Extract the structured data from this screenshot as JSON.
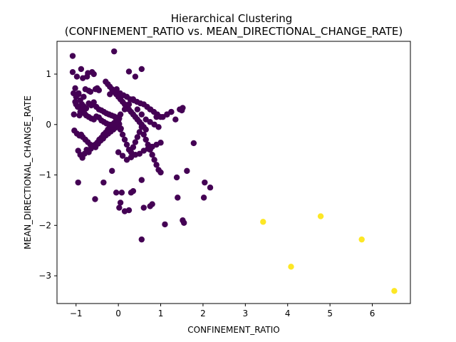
{
  "chart_data": {
    "type": "scatter",
    "title_line1": "Hierarchical Clustering",
    "title_line2": "(CONFINEMENT_RATIO vs. MEAN_DIRECTIONAL_CHANGE_RATE)",
    "xlabel": "CONFINEMENT_RATIO",
    "ylabel": "MEAN_DIRECTIONAL_CHANGE_RATE",
    "xlim": [
      -1.45,
      6.9
    ],
    "ylim": [
      -3.55,
      1.65
    ],
    "xticks": [
      -1,
      0,
      1,
      2,
      3,
      4,
      5,
      6
    ],
    "xtick_labels": [
      "−1",
      "0",
      "1",
      "2",
      "3",
      "4",
      "5",
      "6"
    ],
    "yticks": [
      1,
      0,
      -1,
      -2,
      -3
    ],
    "ytick_labels": [
      "1",
      "0",
      "−1",
      "−2",
      "−3"
    ],
    "grid": false,
    "legend": "none",
    "colors": {
      "cluster_0": "#440154",
      "cluster_1": "#fde725"
    },
    "series": [
      {
        "cluster": 0,
        "color": "#440154",
        "x": [
          -1.08,
          -1.08,
          -1.02,
          -1.02,
          -0.98,
          -0.94,
          -0.92,
          -0.88,
          -0.84,
          -0.82,
          -0.78,
          -0.74,
          -0.72,
          -0.7,
          -0.66,
          -0.62,
          -0.58,
          -0.54,
          -0.5,
          -0.46,
          -1.05,
          -1.0,
          -0.96,
          -0.9,
          -0.86,
          -0.8,
          -0.76,
          -0.7,
          -0.64,
          -0.58,
          -0.52,
          -0.46,
          -0.4,
          -0.34,
          -0.28,
          -0.22,
          -0.16,
          -0.1,
          -0.04,
          0.02,
          -1.04,
          -0.98,
          -0.92,
          -0.88,
          -0.84,
          -0.78,
          -0.72,
          -0.66,
          -0.6,
          -0.54,
          -0.48,
          -0.42,
          -0.36,
          -0.3,
          -0.24,
          -0.18,
          -0.12,
          -0.06,
          0.0,
          0.06,
          -1.06,
          -1.0,
          -0.94,
          -0.9,
          -0.86,
          -0.82,
          -0.76,
          -0.7,
          -0.64,
          -0.58,
          -0.52,
          -0.46,
          -0.4,
          -0.34,
          -0.28,
          -0.22,
          -0.16,
          -0.1,
          -0.04,
          0.02,
          -0.95,
          -0.9,
          -0.85,
          -0.8,
          -0.75,
          -0.7,
          -0.65,
          -0.6,
          -0.55,
          -0.5,
          -0.45,
          -0.4,
          -0.35,
          -0.3,
          -0.25,
          -0.2,
          -0.15,
          -0.1,
          -0.05,
          0.0,
          0.05,
          0.1,
          0.15,
          0.2,
          0.25,
          0.3,
          0.35,
          0.4,
          0.45,
          0.5,
          0.55,
          0.6,
          0.65,
          0.7,
          0.75,
          0.8,
          0.85,
          0.9,
          0.95,
          1.0,
          -0.3,
          -0.25,
          -0.2,
          -0.15,
          -0.1,
          -0.05,
          0.0,
          0.05,
          0.1,
          0.15,
          0.2,
          0.25,
          0.3,
          0.35,
          0.4,
          0.45,
          0.5,
          0.55,
          0.6,
          0.65,
          -0.45,
          -0.35,
          -0.25,
          -0.15,
          -0.05,
          0.05,
          0.15,
          0.25,
          0.35,
          0.45,
          0.55,
          0.65,
          0.75,
          0.85,
          0.95,
          1.05,
          1.15,
          1.25,
          1.35,
          1.45,
          -0.2,
          -0.12,
          -0.04,
          0.04,
          0.12,
          0.2,
          0.28,
          0.36,
          0.44,
          0.52,
          0.6,
          0.68,
          0.76,
          0.84,
          0.92,
          1.0,
          0.0,
          0.1,
          0.2,
          0.3,
          0.4,
          0.5,
          0.6,
          0.7,
          0.8,
          0.9,
          1.0,
          -0.95,
          -0.55,
          -0.35,
          -0.15,
          -0.05,
          0.02,
          0.08,
          0.25,
          0.3,
          0.55,
          0.6,
          0.75,
          0.8,
          1.1,
          1.38,
          1.4,
          1.52,
          1.55,
          1.62,
          1.78,
          2.02,
          2.04,
          2.17,
          0.05,
          0.55,
          -0.1,
          0.25,
          0.4,
          0.55,
          0.75,
          0.9,
          1.15,
          1.5,
          1.52,
          1.25,
          0.15,
          0.35
        ],
        "y": [
          1.36,
          1.04,
          0.72,
          0.45,
          0.95,
          0.62,
          0.18,
          1.1,
          0.92,
          0.55,
          0.7,
          0.95,
          1.02,
          0.67,
          0.65,
          1.04,
          1.0,
          0.7,
          0.72,
          0.68,
          0.2,
          0.4,
          0.35,
          0.25,
          0.3,
          0.22,
          0.18,
          0.15,
          0.12,
          0.1,
          0.16,
          0.14,
          0.08,
          0.05,
          0.02,
          0.0,
          -0.02,
          0.03,
          -0.05,
          0.01,
          -0.12,
          -0.18,
          -0.22,
          -0.2,
          -0.25,
          -0.3,
          -0.35,
          -0.4,
          -0.42,
          -0.45,
          -0.38,
          -0.32,
          -0.28,
          -0.22,
          -0.18,
          -0.14,
          -0.1,
          -0.06,
          -0.03,
          -0.08,
          0.62,
          0.55,
          0.6,
          0.48,
          0.4,
          0.36,
          0.32,
          0.42,
          0.38,
          0.44,
          0.35,
          0.3,
          0.28,
          0.25,
          0.22,
          0.2,
          0.18,
          0.16,
          0.14,
          0.12,
          -0.52,
          -0.6,
          -0.66,
          -0.58,
          -0.5,
          -0.55,
          -0.48,
          -0.44,
          -0.4,
          -0.36,
          -0.3,
          -0.26,
          -0.2,
          -0.16,
          -0.12,
          -0.08,
          -0.04,
          0.0,
          0.04,
          0.08,
          -0.1,
          -0.2,
          -0.3,
          -0.4,
          -0.5,
          -0.55,
          -0.45,
          -0.35,
          -0.25,
          -0.15,
          -0.05,
          -0.2,
          -0.3,
          -0.4,
          -0.5,
          -0.6,
          -0.7,
          -0.8,
          -0.9,
          -0.95,
          0.85,
          0.8,
          0.75,
          0.7,
          0.65,
          0.6,
          0.55,
          0.5,
          0.45,
          0.4,
          0.35,
          0.3,
          0.25,
          0.2,
          0.15,
          0.1,
          0.05,
          0.0,
          -0.05,
          -0.1,
          -0.3,
          -0.2,
          -0.1,
          0.0,
          0.1,
          0.2,
          0.3,
          0.4,
          0.5,
          0.3,
          0.2,
          0.1,
          0.05,
          0.0,
          -0.05,
          0.15,
          0.2,
          0.25,
          0.1,
          0.3,
          0.6,
          0.65,
          0.7,
          0.62,
          0.58,
          0.55,
          0.5,
          0.48,
          0.45,
          0.42,
          0.4,
          0.35,
          0.3,
          0.25,
          0.2,
          0.15,
          -0.55,
          -0.62,
          -0.7,
          -0.65,
          -0.6,
          -0.58,
          -0.52,
          -0.48,
          -0.44,
          -0.4,
          -0.36,
          -1.15,
          -1.48,
          -1.15,
          -0.92,
          -1.35,
          -1.65,
          -1.35,
          -1.7,
          -1.35,
          -2.28,
          -1.65,
          -1.62,
          -1.58,
          -1.98,
          -1.05,
          -1.45,
          -1.9,
          -1.95,
          -0.92,
          -0.37,
          -1.45,
          -1.15,
          -1.25,
          -1.55,
          -1.1,
          1.45,
          1.05,
          0.95,
          1.1,
          0.3,
          0.15,
          0.2,
          0.28,
          0.33,
          0.25,
          -1.72,
          -1.32
        ]
      },
      {
        "cluster": 1,
        "color": "#fde725",
        "x": [
          3.42,
          4.08,
          4.78,
          5.75,
          6.52
        ],
        "y": [
          -1.93,
          -2.82,
          -1.82,
          -2.28,
          -3.3
        ]
      }
    ]
  }
}
